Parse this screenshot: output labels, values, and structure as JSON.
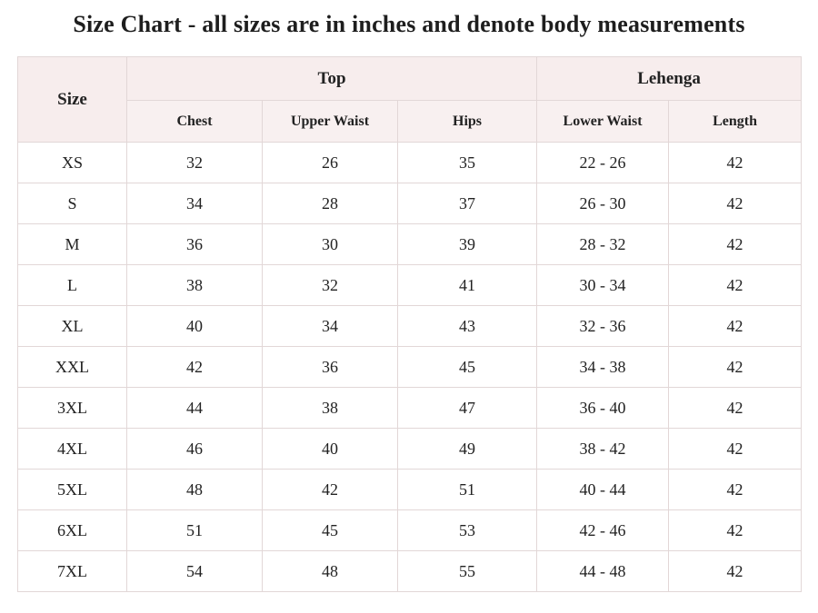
{
  "title": "Size Chart - all sizes are in inches and denote body measurements",
  "table": {
    "size_header": "Size",
    "groups": [
      {
        "label": "Top"
      },
      {
        "label": "Lehenga"
      }
    ],
    "sub_headers": [
      "Chest",
      "Upper Waist",
      "Hips",
      "Lower Waist",
      "Length"
    ],
    "rows": [
      {
        "size": "XS",
        "chest": "32",
        "upper_waist": "26",
        "hips": "35",
        "lower_waist": "22 - 26",
        "length": "42"
      },
      {
        "size": "S",
        "chest": "34",
        "upper_waist": "28",
        "hips": "37",
        "lower_waist": "26 - 30",
        "length": "42"
      },
      {
        "size": "M",
        "chest": "36",
        "upper_waist": "30",
        "hips": "39",
        "lower_waist": "28 - 32",
        "length": "42"
      },
      {
        "size": "L",
        "chest": "38",
        "upper_waist": "32",
        "hips": "41",
        "lower_waist": "30 - 34",
        "length": "42"
      },
      {
        "size": "XL",
        "chest": "40",
        "upper_waist": "34",
        "hips": "43",
        "lower_waist": "32 - 36",
        "length": "42"
      },
      {
        "size": "XXL",
        "chest": "42",
        "upper_waist": "36",
        "hips": "45",
        "lower_waist": "34 - 38",
        "length": "42"
      },
      {
        "size": "3XL",
        "chest": "44",
        "upper_waist": "38",
        "hips": "47",
        "lower_waist": "36 - 40",
        "length": "42"
      },
      {
        "size": "4XL",
        "chest": "46",
        "upper_waist": "40",
        "hips": "49",
        "lower_waist": "38 - 42",
        "length": "42"
      },
      {
        "size": "5XL",
        "chest": "48",
        "upper_waist": "42",
        "hips": "51",
        "lower_waist": "40 - 44",
        "length": "42"
      },
      {
        "size": "6XL",
        "chest": "51",
        "upper_waist": "45",
        "hips": "53",
        "lower_waist": "42 - 46",
        "length": "42"
      },
      {
        "size": "7XL",
        "chest": "54",
        "upper_waist": "48",
        "hips": "55",
        "lower_waist": "44 - 48",
        "length": "42"
      }
    ]
  },
  "colors": {
    "header_background": "#f7eded",
    "border": "#e2d7d7",
    "text": "#222222"
  }
}
